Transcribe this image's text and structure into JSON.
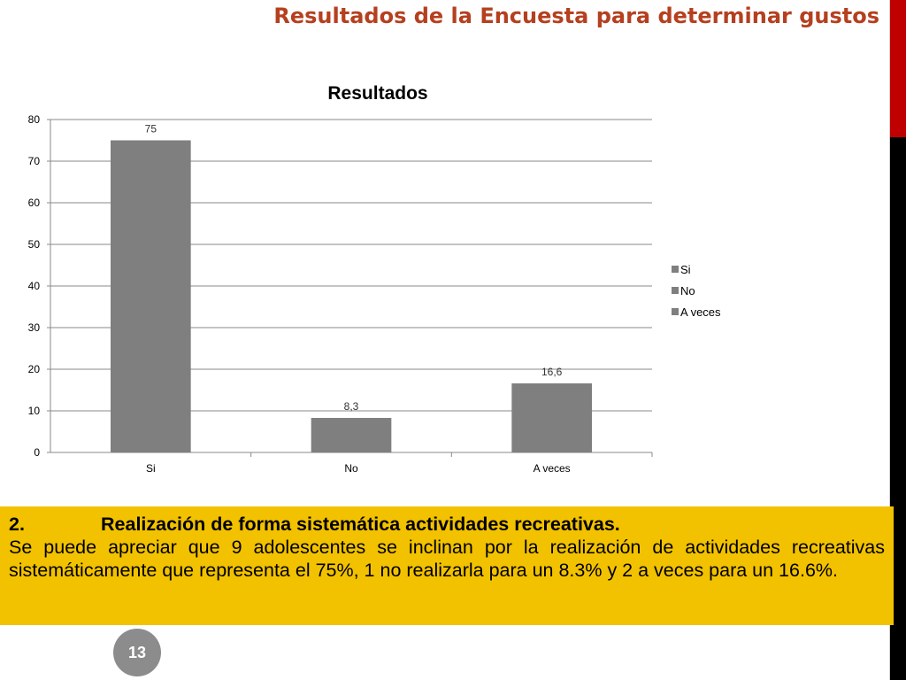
{
  "slide": {
    "title": "Resultados de la Encuesta para determinar gustos",
    "page_number": "13"
  },
  "text_box": {
    "heading_number": "2.",
    "heading": "Realización de forma sistemática actividades recreativas.",
    "body": "Se puede apreciar que 9 adolescentes se inclinan por la realización de actividades recreativas sistemáticamente que representa el 75%, 1 no realizarla para un 8.3% y 2 a veces para un 16.6%."
  },
  "colors": {
    "title": "#b5401f",
    "bar": "#7f7f7f",
    "text_box": "#f2c200",
    "accent_red": "#c00000"
  },
  "chart_data": {
    "type": "bar",
    "title": "Resultados",
    "categories": [
      "Si",
      "No",
      "A veces"
    ],
    "values": [
      75,
      8.3,
      16.6
    ],
    "data_labels": [
      "75",
      "8,3",
      "16,6"
    ],
    "ylim": [
      0,
      80
    ],
    "yticks": [
      0,
      10,
      20,
      30,
      40,
      50,
      60,
      70,
      80
    ],
    "grid": true,
    "legend": {
      "position": "right",
      "entries": [
        "Si",
        "No",
        "A veces"
      ]
    }
  }
}
